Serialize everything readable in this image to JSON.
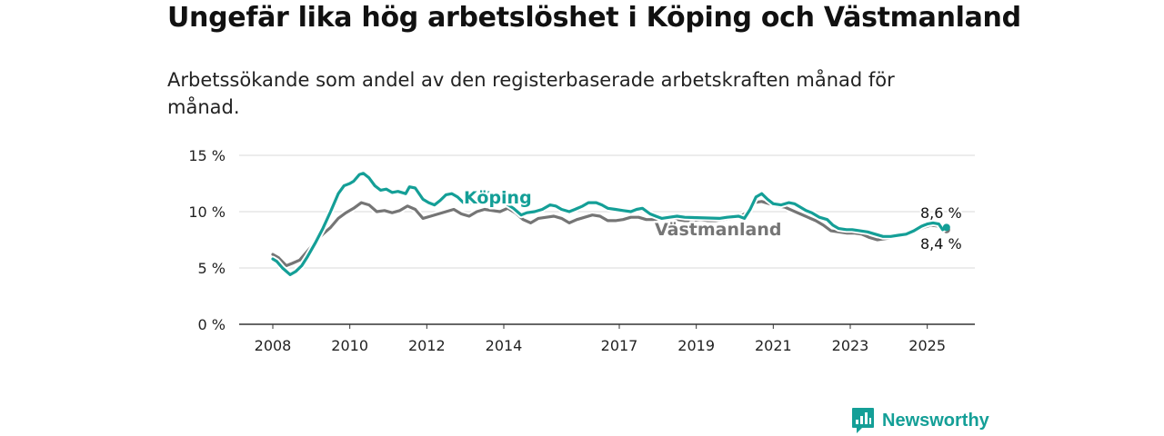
{
  "title": "Ungefär lika hög arbetslöshet i Köping och Västmanland",
  "subtitle": "Arbetssökande som andel av den registerbaserade arbetskraften månad för månad.",
  "brand": {
    "name": "Newsworthy",
    "icon": "newsworthy-logo-icon",
    "color": "#149f97"
  },
  "chart_data": {
    "type": "line",
    "ylim": [
      0,
      15
    ],
    "y_ticks": [
      0,
      5,
      10,
      15
    ],
    "y_tick_labels": [
      "0 %",
      "5 %",
      "10 %",
      "15 %"
    ],
    "x_range": [
      2008.0,
      2026.0
    ],
    "x_ticks": [
      2008,
      2010,
      2012,
      2014,
      2017,
      2019,
      2021,
      2023,
      2025
    ],
    "x_tick_labels": [
      "2008",
      "2010",
      "2012",
      "2014",
      "2017",
      "2019",
      "2021",
      "2023",
      "2025"
    ],
    "grid": true,
    "series": [
      {
        "name": "Köping",
        "color": "#149f97",
        "end_label": "8,6 %",
        "points": [
          [
            2008.0,
            5.8
          ],
          [
            2008.1,
            5.6
          ],
          [
            2008.25,
            5.0
          ],
          [
            2008.45,
            4.4
          ],
          [
            2008.6,
            4.7
          ],
          [
            2008.75,
            5.2
          ],
          [
            2008.9,
            6.0
          ],
          [
            2009.1,
            7.2
          ],
          [
            2009.3,
            8.5
          ],
          [
            2009.5,
            10.0
          ],
          [
            2009.7,
            11.6
          ],
          [
            2009.85,
            12.3
          ],
          [
            2010.0,
            12.5
          ],
          [
            2010.1,
            12.7
          ],
          [
            2010.25,
            13.3
          ],
          [
            2010.35,
            13.4
          ],
          [
            2010.5,
            13.0
          ],
          [
            2010.65,
            12.3
          ],
          [
            2010.8,
            11.9
          ],
          [
            2010.95,
            12.0
          ],
          [
            2011.1,
            11.7
          ],
          [
            2011.25,
            11.8
          ],
          [
            2011.45,
            11.6
          ],
          [
            2011.55,
            12.2
          ],
          [
            2011.7,
            12.1
          ],
          [
            2011.9,
            11.1
          ],
          [
            2012.05,
            10.8
          ],
          [
            2012.2,
            10.6
          ],
          [
            2012.35,
            11.0
          ],
          [
            2012.5,
            11.5
          ],
          [
            2012.65,
            11.6
          ],
          [
            2012.8,
            11.3
          ],
          [
            2012.95,
            10.8
          ],
          [
            2013.1,
            10.7
          ],
          [
            2013.25,
            11.0
          ],
          [
            2013.45,
            11.2
          ],
          [
            2013.6,
            11.7
          ],
          [
            2014.25,
            10.3
          ],
          [
            2014.45,
            9.7
          ],
          [
            2014.6,
            9.9
          ],
          [
            2014.8,
            10.0
          ],
          [
            2015.0,
            10.2
          ],
          [
            2015.2,
            10.6
          ],
          [
            2015.35,
            10.5
          ],
          [
            2015.5,
            10.2
          ],
          [
            2015.7,
            10.0
          ],
          [
            2015.85,
            10.2
          ],
          [
            2016.05,
            10.5
          ],
          [
            2016.2,
            10.8
          ],
          [
            2016.4,
            10.8
          ],
          [
            2016.55,
            10.6
          ],
          [
            2016.7,
            10.3
          ],
          [
            2016.9,
            10.2
          ],
          [
            2017.1,
            10.1
          ],
          [
            2017.3,
            10.0
          ],
          [
            2017.45,
            10.2
          ],
          [
            2017.6,
            10.3
          ],
          [
            2017.8,
            9.8
          ],
          [
            2017.95,
            9.6
          ],
          [
            2018.1,
            9.4
          ],
          [
            2018.3,
            9.5
          ],
          [
            2018.5,
            9.6
          ],
          [
            2018.7,
            9.5
          ],
          [
            2019.6,
            9.4
          ],
          [
            2019.8,
            9.5
          ],
          [
            2020.1,
            9.6
          ],
          [
            2020.25,
            9.4
          ],
          [
            2020.4,
            10.2
          ],
          [
            2020.55,
            11.3
          ],
          [
            2020.7,
            11.6
          ],
          [
            2020.85,
            11.1
          ],
          [
            2021.0,
            10.7
          ],
          [
            2021.2,
            10.6
          ],
          [
            2021.4,
            10.8
          ],
          [
            2021.55,
            10.7
          ],
          [
            2021.7,
            10.4
          ],
          [
            2021.85,
            10.1
          ],
          [
            2022.0,
            9.9
          ],
          [
            2022.2,
            9.5
          ],
          [
            2022.4,
            9.3
          ],
          [
            2022.55,
            8.8
          ],
          [
            2022.7,
            8.5
          ],
          [
            2022.9,
            8.4
          ],
          [
            2023.05,
            8.4
          ],
          [
            2023.25,
            8.3
          ],
          [
            2023.45,
            8.2
          ],
          [
            2023.65,
            8.0
          ],
          [
            2023.85,
            7.8
          ],
          [
            2024.05,
            7.8
          ],
          [
            2024.25,
            7.9
          ],
          [
            2024.45,
            8.0
          ],
          [
            2024.65,
            8.3
          ],
          [
            2024.85,
            8.7
          ],
          [
            2025.0,
            8.9
          ],
          [
            2025.15,
            9.0
          ],
          [
            2025.3,
            8.9
          ],
          [
            2025.4,
            8.4
          ],
          [
            2025.5,
            8.6
          ]
        ]
      },
      {
        "name": "Västmanland",
        "color": "#757575",
        "end_label": "8,4 %",
        "points": [
          [
            2008.0,
            6.2
          ],
          [
            2008.15,
            5.9
          ],
          [
            2008.35,
            5.2
          ],
          [
            2008.5,
            5.4
          ],
          [
            2008.7,
            5.7
          ],
          [
            2008.9,
            6.5
          ],
          [
            2009.1,
            7.3
          ],
          [
            2009.3,
            8.0
          ],
          [
            2009.5,
            8.6
          ],
          [
            2009.7,
            9.4
          ],
          [
            2009.9,
            9.9
          ],
          [
            2010.1,
            10.3
          ],
          [
            2010.3,
            10.8
          ],
          [
            2010.5,
            10.6
          ],
          [
            2010.7,
            10.0
          ],
          [
            2010.9,
            10.1
          ],
          [
            2011.1,
            9.9
          ],
          [
            2011.3,
            10.1
          ],
          [
            2011.5,
            10.5
          ],
          [
            2011.7,
            10.2
          ],
          [
            2011.9,
            9.4
          ],
          [
            2012.1,
            9.6
          ],
          [
            2012.3,
            9.8
          ],
          [
            2012.5,
            10.0
          ],
          [
            2012.7,
            10.2
          ],
          [
            2012.9,
            9.8
          ],
          [
            2013.1,
            9.6
          ],
          [
            2013.3,
            10.0
          ],
          [
            2013.5,
            10.2
          ],
          [
            2013.7,
            10.1
          ],
          [
            2013.9,
            10.0
          ],
          [
            2014.1,
            10.3
          ],
          [
            2014.3,
            9.9
          ],
          [
            2014.5,
            9.3
          ],
          [
            2014.7,
            9.0
          ],
          [
            2014.9,
            9.4
          ],
          [
            2015.1,
            9.5
          ],
          [
            2015.3,
            9.6
          ],
          [
            2015.5,
            9.4
          ],
          [
            2015.7,
            9.0
          ],
          [
            2015.9,
            9.3
          ],
          [
            2016.1,
            9.5
          ],
          [
            2016.3,
            9.7
          ],
          [
            2016.5,
            9.6
          ],
          [
            2016.7,
            9.2
          ],
          [
            2016.9,
            9.2
          ],
          [
            2017.1,
            9.3
          ],
          [
            2017.3,
            9.5
          ],
          [
            2017.5,
            9.5
          ],
          [
            2017.7,
            9.3
          ],
          [
            2017.9,
            9.3
          ],
          [
            2018.1,
            9.4
          ],
          [
            2018.3,
            9.2
          ],
          [
            2018.5,
            9.3
          ],
          [
            2018.7,
            9.2
          ],
          [
            2018.9,
            9.2
          ],
          [
            2019.1,
            9.3
          ],
          [
            2019.3,
            9.2
          ],
          [
            2019.5,
            9.2
          ],
          [
            2019.7,
            9.3
          ],
          [
            2019.9,
            9.4
          ],
          [
            2020.1,
            9.5
          ],
          [
            2020.3,
            9.9
          ],
          [
            2020.5,
            10.8
          ],
          [
            2020.7,
            10.9
          ],
          [
            2020.9,
            10.7
          ],
          [
            2021.1,
            10.5
          ],
          [
            2021.3,
            10.4
          ],
          [
            2021.5,
            10.1
          ],
          [
            2021.7,
            9.8
          ],
          [
            2021.9,
            9.5
          ],
          [
            2022.1,
            9.2
          ],
          [
            2022.3,
            8.8
          ],
          [
            2022.5,
            8.3
          ],
          [
            2022.7,
            8.2
          ],
          [
            2022.9,
            8.1
          ],
          [
            2023.1,
            8.1
          ],
          [
            2023.3,
            8.0
          ],
          [
            2023.5,
            7.7
          ],
          [
            2023.7,
            7.5
          ],
          [
            2023.9,
            7.6
          ],
          [
            2024.1,
            7.7
          ],
          [
            2024.3,
            7.9
          ],
          [
            2024.5,
            8.0
          ],
          [
            2024.7,
            8.3
          ],
          [
            2024.9,
            8.6
          ],
          [
            2025.1,
            8.8
          ],
          [
            2025.3,
            8.7
          ],
          [
            2025.5,
            8.4
          ]
        ]
      }
    ]
  }
}
